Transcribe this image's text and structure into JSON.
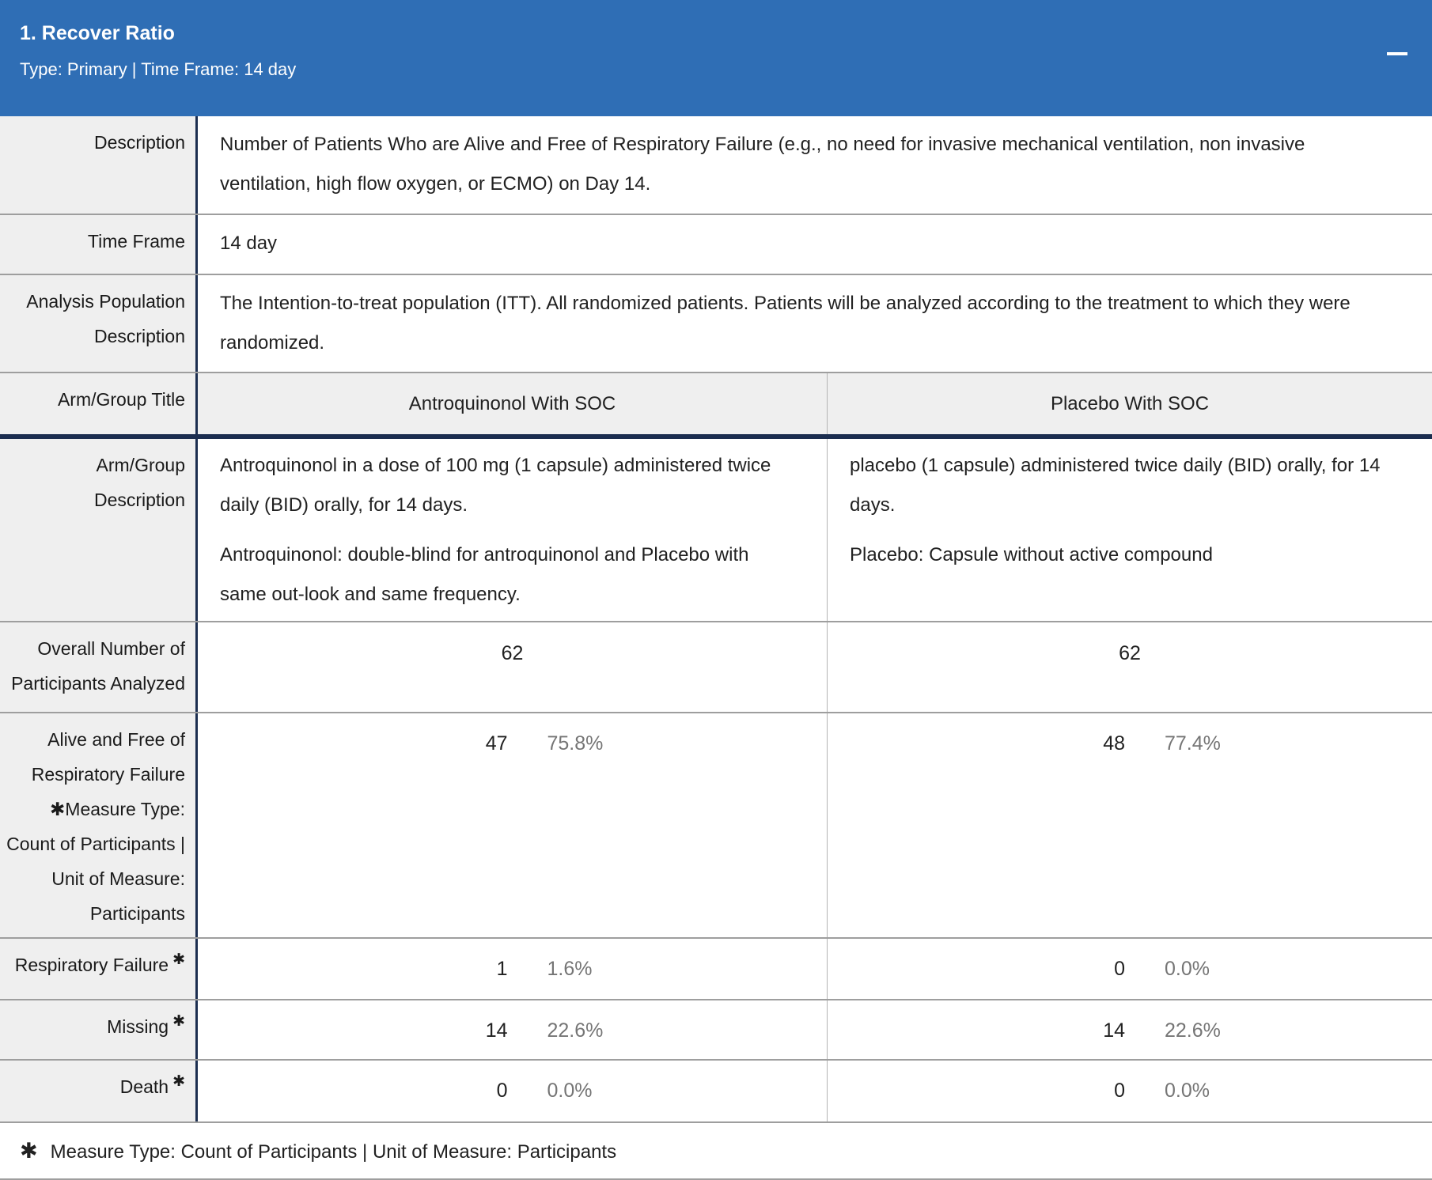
{
  "header": {
    "title": "1. Recover Ratio",
    "subtitle": "Type: Primary | Time Frame: 14 day"
  },
  "info_rows": [
    {
      "label": "Description",
      "value": "Number of Patients Who are Alive and Free of Respiratory Failure (e.g., no need for invasive mechanical ventilation, non invasive ventilation, high flow oxygen, or ECMO) on Day 14."
    },
    {
      "label": "Time Frame",
      "value": "14 day"
    },
    {
      "label": "Analysis Population Description",
      "value": "The Intention-to-treat population (ITT). All randomized patients. Patients will be analyzed according to the treatment to which they were randomized."
    }
  ],
  "arm_titles": {
    "label": "Arm/Group Title",
    "arms": [
      "Antroquinonol With SOC",
      "Placebo With SOC"
    ]
  },
  "arm_descriptions": {
    "label": "Arm/Group Description",
    "arms": [
      [
        "Antroquinonol in a dose of 100 mg (1 capsule) administered twice daily (BID) orally, for 14 days.",
        "Antroquinonol: double-blind for antroquinonol and Placebo with same out-look and same frequency."
      ],
      [
        "placebo (1 capsule) administered twice daily (BID) orally, for 14 days.",
        "Placebo: Capsule without active compound"
      ]
    ]
  },
  "overall": {
    "label": "Overall Number of Participants Analyzed",
    "values": [
      "62",
      "62"
    ]
  },
  "measure_rows": [
    {
      "label": "Alive and Free of Respiratory Failure",
      "marker": "✱",
      "measure_info": "Measure Type: Count of Participants | Unit of Measure: Participants",
      "cells": [
        {
          "count": "47",
          "pct": "75.8%"
        },
        {
          "count": "48",
          "pct": "77.4%"
        }
      ]
    },
    {
      "label": "Respiratory Failure",
      "marker": "✱",
      "cells": [
        {
          "count": "1",
          "pct": "1.6%"
        },
        {
          "count": "0",
          "pct": "0.0%"
        }
      ]
    },
    {
      "label": "Missing",
      "marker": "✱",
      "cells": [
        {
          "count": "14",
          "pct": "22.6%"
        },
        {
          "count": "14",
          "pct": "22.6%"
        }
      ]
    },
    {
      "label": "Death",
      "marker": "✱",
      "cells": [
        {
          "count": "0",
          "pct": "0.0%"
        },
        {
          "count": "0",
          "pct": "0.0%"
        }
      ]
    }
  ],
  "footnote": {
    "marker": "✱",
    "text": "Measure Type: Count of Participants | Unit of Measure: Participants"
  },
  "icons": {
    "collapse": "minus-icon"
  },
  "colors": {
    "header_bg": "#2f6eb5",
    "header_text": "#ffffff",
    "label_bg": "#efefef",
    "dark_divider": "#1c2e50",
    "grid_line": "#9e9e9e",
    "body_text": "#212121",
    "percent_text": "#757575"
  }
}
